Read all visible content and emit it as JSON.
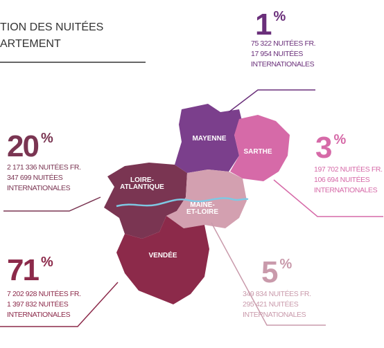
{
  "title": [
    "TION DES NUITÉES",
    "ARTEMENT"
  ],
  "percent_sign": "%",
  "regions": [
    {
      "label": [
        "MAYENNE"
      ],
      "percent": "1",
      "lines": [
        "75 322 NUITÉES FR.",
        "17 954  NUITÉES",
        "INTERNATIONALES"
      ]
    },
    {
      "label": [
        "SARTHE"
      ],
      "percent": "3",
      "lines": [
        "197 702 NUITÉES FR.",
        "106 694 NUITÉES",
        "INTERNATIONALES"
      ]
    },
    {
      "label": [
        "LOIRE-",
        "ATLANTIQUE"
      ],
      "percent": "20",
      "lines": [
        "2 171 336 NUITÉES FR.",
        " 347 699  NUITÉES",
        "INTERNATIONALES"
      ]
    },
    {
      "label": [
        "MAINE-",
        "ET-LOIRE"
      ],
      "percent": "5",
      "lines": [
        "349 834 NUITÉES FR.",
        "295 421 NUITÉES",
        "INTERNATIONALES"
      ]
    },
    {
      "label": [
        "VENDÉE"
      ],
      "percent": "71",
      "lines": [
        "7 202 928 NUITÉES FR.",
        "1 397 832 NUITÉES",
        "INTERNATIONALES"
      ]
    }
  ]
}
